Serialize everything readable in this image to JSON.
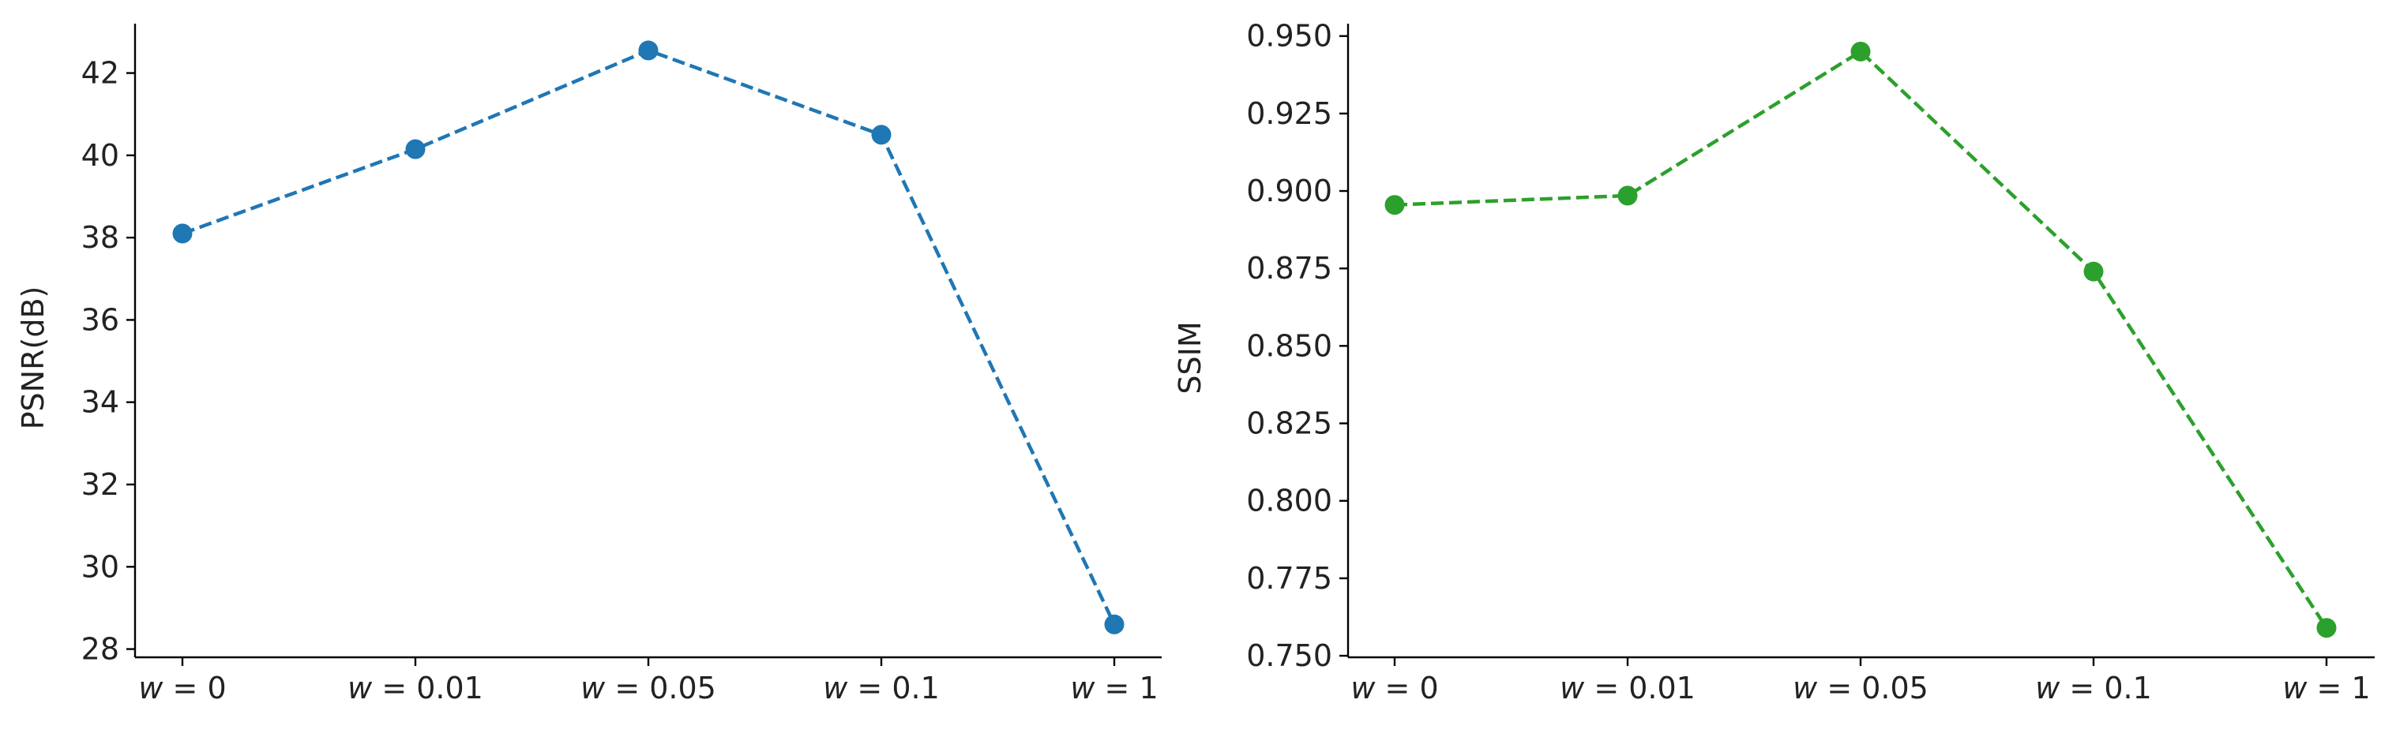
{
  "chart_data": [
    {
      "type": "line",
      "categories": [
        "w = 0",
        "w = 0.01",
        "w = 0.05",
        "w = 0.1",
        "w = 1"
      ],
      "series": [
        {
          "values": [
            38.1,
            40.15,
            42.55,
            40.5,
            28.6
          ],
          "color": "#1f77b4",
          "linestyle": "dashed",
          "marker": "circle"
        }
      ],
      "title": "",
      "xlabel": "",
      "ylabel": "PSNR(dB)",
      "ylim": [
        27.8,
        43.2
      ],
      "yticks": [
        28,
        30,
        32,
        34,
        36,
        38,
        40,
        42
      ],
      "ytick_labels": [
        "28",
        "30",
        "32",
        "34",
        "36",
        "38",
        "40",
        "42"
      ],
      "grid": false
    },
    {
      "type": "line",
      "categories": [
        "w = 0",
        "w = 0.01",
        "w = 0.05",
        "w = 0.1",
        "w = 1"
      ],
      "series": [
        {
          "values": [
            0.8955,
            0.8985,
            0.945,
            0.874,
            0.759
          ],
          "color": "#2ca02c",
          "linestyle": "dashed",
          "marker": "circle"
        }
      ],
      "title": "",
      "xlabel": "",
      "ylabel": "SSIM",
      "ylim": [
        0.7495,
        0.954
      ],
      "yticks": [
        0.75,
        0.775,
        0.8,
        0.825,
        0.85,
        0.875,
        0.9,
        0.925,
        0.95
      ],
      "ytick_labels": [
        "0.750",
        "0.775",
        "0.800",
        "0.825",
        "0.850",
        "0.875",
        "0.900",
        "0.925",
        "0.950"
      ],
      "grid": false
    }
  ]
}
